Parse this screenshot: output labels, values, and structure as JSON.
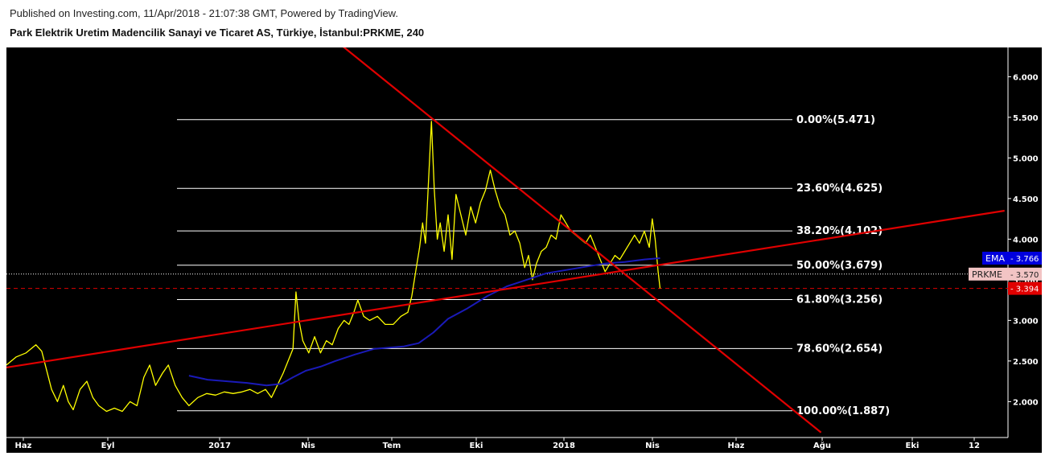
{
  "header": {
    "published": "Published on Investing.com, 11/Apr/2018 - 21:07:38 GMT, Powered by TradingView.",
    "title": "Park Elektrik Uretim Madencilik Sanayi ve Ticaret AS, Türkiye, İstanbul:PRKME, 240"
  },
  "colors": {
    "background": "#000000",
    "price": "#ffff00",
    "ema": "#1a1ab8",
    "trendline": "#e00000",
    "fib_line": "#ffffff",
    "ema_badge": "#0000dd",
    "price_badge": "#f2c4c4",
    "last_badge": "#e00000"
  },
  "chart_data": {
    "type": "line",
    "symbol": "PRKME",
    "interval": "240",
    "x_ticks": [
      "Haz",
      "Eyl",
      "2017",
      "Nis",
      "Tem",
      "Eki",
      "2018",
      "Nis",
      "Haz",
      "Ağu",
      "Eki",
      "12"
    ],
    "y_ticks": [
      "2.000",
      "2.500",
      "3.000",
      "3.500",
      "4.000",
      "4.500",
      "5.000",
      "5.500",
      "6.000"
    ],
    "ylim": [
      1.62,
      6.45
    ],
    "fibonacci": [
      {
        "label": "0.00%(5.471)",
        "value": 5.471
      },
      {
        "label": "23.60%(4.625)",
        "value": 4.625
      },
      {
        "label": "38.20%(4.102)",
        "value": 4.102
      },
      {
        "label": "50.00%(3.679)",
        "value": 3.679
      },
      {
        "label": "61.80%(3.256)",
        "value": 3.256
      },
      {
        "label": "78.60%(2.654)",
        "value": 2.654
      },
      {
        "label": "100.00%(1.887)",
        "value": 1.887
      }
    ],
    "badges": {
      "ema_label": "EMA",
      "ema_value": "3.766",
      "price_label": "PRKME",
      "price_value": "3.570",
      "last_value": "3.394"
    },
    "ema_value": 3.766,
    "price_value": 3.57,
    "last_value": 3.394,
    "series": [
      {
        "name": "PRKME",
        "points": [
          [
            0.0,
            2.45
          ],
          [
            1.0,
            2.55
          ],
          [
            2.0,
            2.6
          ],
          [
            3.0,
            2.7
          ],
          [
            3.6,
            2.62
          ],
          [
            4.6,
            2.15
          ],
          [
            5.2,
            2.0
          ],
          [
            5.8,
            2.2
          ],
          [
            6.3,
            2.0
          ],
          [
            6.8,
            1.9
          ],
          [
            7.5,
            2.15
          ],
          [
            8.2,
            2.25
          ],
          [
            8.8,
            2.05
          ],
          [
            9.4,
            1.95
          ],
          [
            10.2,
            1.88
          ],
          [
            11.0,
            1.92
          ],
          [
            11.8,
            1.88
          ],
          [
            12.6,
            2.0
          ],
          [
            13.3,
            1.95
          ],
          [
            14.0,
            2.3
          ],
          [
            14.6,
            2.45
          ],
          [
            15.2,
            2.2
          ],
          [
            15.9,
            2.35
          ],
          [
            16.5,
            2.45
          ],
          [
            17.2,
            2.2
          ],
          [
            17.9,
            2.05
          ],
          [
            18.6,
            1.95
          ],
          [
            19.5,
            2.05
          ],
          [
            20.4,
            2.1
          ],
          [
            21.3,
            2.08
          ],
          [
            22.2,
            2.12
          ],
          [
            23.1,
            2.1
          ],
          [
            24.0,
            2.12
          ],
          [
            24.8,
            2.15
          ],
          [
            25.6,
            2.1
          ],
          [
            26.4,
            2.15
          ],
          [
            27.0,
            2.05
          ],
          [
            27.6,
            2.2
          ],
          [
            28.2,
            2.35
          ],
          [
            28.7,
            2.5
          ],
          [
            29.2,
            2.65
          ],
          [
            29.5,
            3.35
          ],
          [
            29.8,
            3.0
          ],
          [
            30.2,
            2.75
          ],
          [
            30.8,
            2.6
          ],
          [
            31.4,
            2.8
          ],
          [
            32.0,
            2.6
          ],
          [
            32.6,
            2.75
          ],
          [
            33.2,
            2.7
          ],
          [
            33.8,
            2.9
          ],
          [
            34.4,
            3.0
          ],
          [
            34.9,
            2.95
          ],
          [
            35.4,
            3.1
          ],
          [
            35.8,
            3.25
          ],
          [
            36.4,
            3.05
          ],
          [
            37.0,
            3.0
          ],
          [
            37.8,
            3.05
          ],
          [
            38.6,
            2.95
          ],
          [
            39.4,
            2.95
          ],
          [
            40.2,
            3.05
          ],
          [
            40.9,
            3.1
          ],
          [
            41.3,
            3.3
          ],
          [
            41.7,
            3.6
          ],
          [
            42.1,
            3.9
          ],
          [
            42.4,
            4.2
          ],
          [
            42.7,
            3.95
          ],
          [
            43.0,
            4.7
          ],
          [
            43.3,
            5.45
          ],
          [
            43.6,
            4.6
          ],
          [
            43.9,
            4.0
          ],
          [
            44.2,
            4.2
          ],
          [
            44.6,
            3.85
          ],
          [
            45.0,
            4.3
          ],
          [
            45.4,
            3.75
          ],
          [
            45.8,
            4.55
          ],
          [
            46.3,
            4.3
          ],
          [
            46.8,
            4.05
          ],
          [
            47.3,
            4.4
          ],
          [
            47.8,
            4.2
          ],
          [
            48.3,
            4.45
          ],
          [
            48.8,
            4.6
          ],
          [
            49.3,
            4.85
          ],
          [
            49.8,
            4.6
          ],
          [
            50.3,
            4.4
          ],
          [
            50.8,
            4.3
          ],
          [
            51.3,
            4.05
          ],
          [
            51.8,
            4.1
          ],
          [
            52.3,
            3.95
          ],
          [
            52.8,
            3.65
          ],
          [
            53.2,
            3.8
          ],
          [
            53.6,
            3.5
          ],
          [
            54.0,
            3.7
          ],
          [
            54.5,
            3.85
          ],
          [
            55.0,
            3.9
          ],
          [
            55.5,
            4.05
          ],
          [
            56.0,
            4.0
          ],
          [
            56.5,
            4.3
          ],
          [
            57.0,
            4.2
          ],
          [
            57.5,
            4.1
          ],
          [
            58.0,
            4.05
          ],
          [
            58.5,
            4.0
          ],
          [
            59.0,
            3.95
          ],
          [
            59.5,
            4.05
          ],
          [
            60.0,
            3.9
          ],
          [
            60.5,
            3.75
          ],
          [
            61.0,
            3.6
          ],
          [
            61.5,
            3.7
          ],
          [
            62.0,
            3.8
          ],
          [
            62.5,
            3.75
          ],
          [
            63.0,
            3.85
          ],
          [
            63.5,
            3.95
          ],
          [
            64.0,
            4.05
          ],
          [
            64.5,
            3.95
          ],
          [
            65.0,
            4.1
          ],
          [
            65.5,
            3.9
          ],
          [
            65.8,
            4.25
          ],
          [
            66.1,
            4.0
          ],
          [
            66.4,
            3.6
          ],
          [
            66.6,
            3.394
          ]
        ]
      },
      {
        "name": "EMA",
        "points": [
          [
            18.6,
            2.32
          ],
          [
            20.5,
            2.27
          ],
          [
            22.5,
            2.25
          ],
          [
            24.5,
            2.23
          ],
          [
            26.5,
            2.2
          ],
          [
            28.0,
            2.22
          ],
          [
            29.2,
            2.3
          ],
          [
            30.5,
            2.38
          ],
          [
            32.0,
            2.43
          ],
          [
            33.5,
            2.5
          ],
          [
            35.5,
            2.58
          ],
          [
            37.5,
            2.65
          ],
          [
            40.5,
            2.68
          ],
          [
            42.0,
            2.72
          ],
          [
            43.5,
            2.85
          ],
          [
            45.0,
            3.02
          ],
          [
            47.0,
            3.15
          ],
          [
            49.0,
            3.3
          ],
          [
            51.0,
            3.42
          ],
          [
            53.0,
            3.5
          ],
          [
            55.0,
            3.58
          ],
          [
            57.0,
            3.62
          ],
          [
            59.0,
            3.66
          ],
          [
            61.0,
            3.7
          ],
          [
            63.0,
            3.72
          ],
          [
            65.0,
            3.75
          ],
          [
            66.6,
            3.766
          ]
        ]
      }
    ],
    "trendlines": [
      {
        "from": [
          0,
          2.42
        ],
        "to": [
          101.7,
          4.35
        ]
      },
      {
        "from": [
          34.0,
          6.4
        ],
        "to": [
          83.0,
          1.62
        ]
      }
    ]
  }
}
